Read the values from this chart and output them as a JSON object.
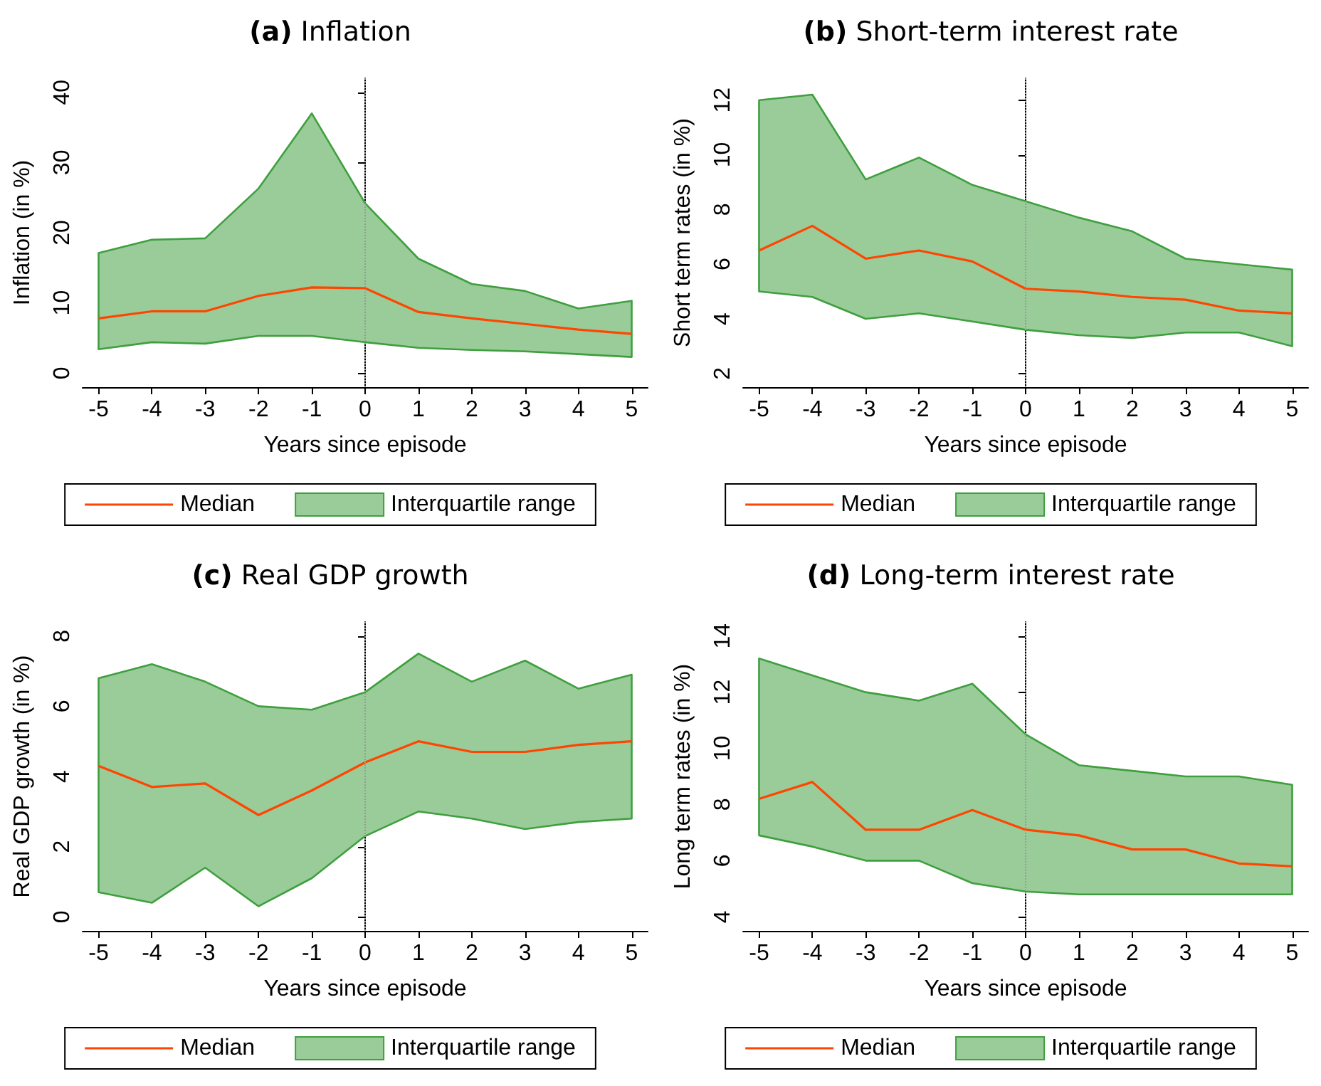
{
  "chart_data": [
    {
      "type": "line",
      "title": "(a) Inflation",
      "xlabel": "Years since episode",
      "ylabel": "Inflation (in %)",
      "x": [
        -5,
        -4,
        -3,
        -2,
        -1,
        0,
        1,
        2,
        3,
        4,
        5
      ],
      "xlim": [
        -5.3,
        5.3
      ],
      "xticks": [
        -5,
        -4,
        -3,
        -2,
        -1,
        0,
        1,
        2,
        3,
        4,
        5
      ],
      "ylim": [
        -2,
        42
      ],
      "yticks": [
        0,
        10,
        20,
        30,
        40
      ],
      "grid": false,
      "legend": "bottom",
      "ref_lines": [
        {
          "axis": "x",
          "value": 0,
          "color": "#999999",
          "line_style": "dotted"
        }
      ],
      "series": [
        {
          "name": "Median",
          "color": "#ff4500",
          "values": [
            7.8,
            8.8,
            8.8,
            11.0,
            12.2,
            12.1,
            8.7,
            7.8,
            7.0,
            6.2,
            5.6
          ],
          "lower": [
            3.4,
            4.4,
            4.2,
            5.3,
            5.3,
            4.4,
            3.6,
            3.3,
            3.1,
            2.7,
            2.3
          ],
          "upper": [
            17.1,
            19.0,
            19.2,
            26.3,
            37.0,
            24.2,
            16.3,
            12.7,
            11.7,
            9.2,
            10.3
          ]
        },
        {
          "name": "Interquartile range",
          "type": "area",
          "color": "#99cc99",
          "values": [
            null,
            null,
            null,
            null,
            null,
            null,
            null,
            null,
            null,
            null,
            null
          ]
        }
      ]
    },
    {
      "type": "line",
      "title": "(b) Short-term interest rate",
      "xlabel": "Years since episode",
      "ylabel": "Short term rates (in %)",
      "x": [
        -5,
        -4,
        -3,
        -2,
        -1,
        0,
        1,
        2,
        3,
        4,
        5
      ],
      "xlim": [
        -5.3,
        5.3
      ],
      "xticks": [
        -5,
        -4,
        -3,
        -2,
        -1,
        0,
        1,
        2,
        3,
        4,
        5
      ],
      "ylim": [
        1.5,
        12.8
      ],
      "yticks": [
        2,
        4,
        6,
        8,
        10,
        12
      ],
      "grid": false,
      "legend": "bottom",
      "ref_lines": [
        {
          "axis": "x",
          "value": 0,
          "color": "#999999",
          "line_style": "dotted"
        }
      ],
      "series": [
        {
          "name": "Median",
          "color": "#ff4500",
          "values": [
            6.5,
            7.4,
            6.2,
            6.5,
            6.1,
            5.1,
            5.0,
            4.8,
            4.7,
            4.3,
            4.2
          ],
          "lower": [
            5.0,
            4.8,
            4.0,
            4.2,
            3.9,
            3.6,
            3.4,
            3.3,
            3.5,
            3.5,
            3.0
          ],
          "upper": [
            12.0,
            12.2,
            9.1,
            9.9,
            8.9,
            8.3,
            7.7,
            7.2,
            6.2,
            6.0,
            5.8
          ]
        },
        {
          "name": "Interquartile range",
          "type": "area",
          "color": "#99cc99",
          "values": [
            null,
            null,
            null,
            null,
            null,
            null,
            null,
            null,
            null,
            null,
            null
          ]
        }
      ]
    },
    {
      "type": "line",
      "title": "(c) Real GDP growth",
      "xlabel": "Years since episode",
      "ylabel": "Real GDP growth (in %)",
      "x": [
        -5,
        -4,
        -3,
        -2,
        -1,
        0,
        1,
        2,
        3,
        4,
        5
      ],
      "xlim": [
        -5.3,
        5.3
      ],
      "xticks": [
        -5,
        -4,
        -3,
        -2,
        -1,
        0,
        1,
        2,
        3,
        4,
        5
      ],
      "ylim": [
        -0.4,
        8.4
      ],
      "yticks": [
        0,
        2,
        4,
        6,
        8
      ],
      "grid": false,
      "legend": "bottom",
      "ref_lines": [
        {
          "axis": "x",
          "value": 0,
          "color": "#999999",
          "line_style": "dotted"
        }
      ],
      "series": [
        {
          "name": "Median",
          "color": "#ff4500",
          "values": [
            4.3,
            3.7,
            3.8,
            2.9,
            3.6,
            4.4,
            5.0,
            4.7,
            4.7,
            4.9,
            5.0
          ],
          "lower": [
            0.7,
            0.4,
            1.4,
            0.3,
            1.1,
            2.3,
            3.0,
            2.8,
            2.5,
            2.7,
            2.8
          ],
          "upper": [
            6.8,
            7.2,
            6.7,
            6.0,
            5.9,
            6.4,
            7.5,
            6.7,
            7.3,
            6.5,
            6.9
          ]
        },
        {
          "name": "Interquartile range",
          "type": "area",
          "color": "#99cc99",
          "values": [
            null,
            null,
            null,
            null,
            null,
            null,
            null,
            null,
            null,
            null,
            null
          ]
        }
      ]
    },
    {
      "type": "line",
      "title": "(d) Long-term interest rate",
      "xlabel": "Years since episode",
      "ylabel": "Long term rates (in %)",
      "x": [
        -5,
        -4,
        -3,
        -2,
        -1,
        0,
        1,
        2,
        3,
        4,
        5
      ],
      "xlim": [
        -5.3,
        5.3
      ],
      "xticks": [
        -5,
        -4,
        -3,
        -2,
        -1,
        0,
        1,
        2,
        3,
        4,
        5
      ],
      "ylim": [
        3.5,
        14.5
      ],
      "yticks": [
        4,
        6,
        8,
        10,
        12,
        14
      ],
      "grid": false,
      "legend": "bottom",
      "ref_lines": [
        {
          "axis": "x",
          "value": 0,
          "color": "#999999",
          "line_style": "dotted"
        }
      ],
      "series": [
        {
          "name": "Median",
          "color": "#ff4500",
          "values": [
            8.2,
            8.8,
            7.1,
            7.1,
            7.8,
            7.1,
            6.9,
            6.4,
            6.4,
            5.9,
            5.8
          ],
          "lower": [
            6.9,
            6.5,
            6.0,
            6.0,
            5.2,
            4.9,
            4.8,
            4.8,
            4.8,
            4.8,
            4.8
          ],
          "upper": [
            13.2,
            12.6,
            12.0,
            11.7,
            12.3,
            10.5,
            9.4,
            9.2,
            9.0,
            9.0,
            8.7
          ]
        },
        {
          "name": "Interquartile range",
          "type": "area",
          "color": "#99cc99",
          "values": [
            null,
            null,
            null,
            null,
            null,
            null,
            null,
            null,
            null,
            null,
            null
          ]
        }
      ]
    }
  ]
}
